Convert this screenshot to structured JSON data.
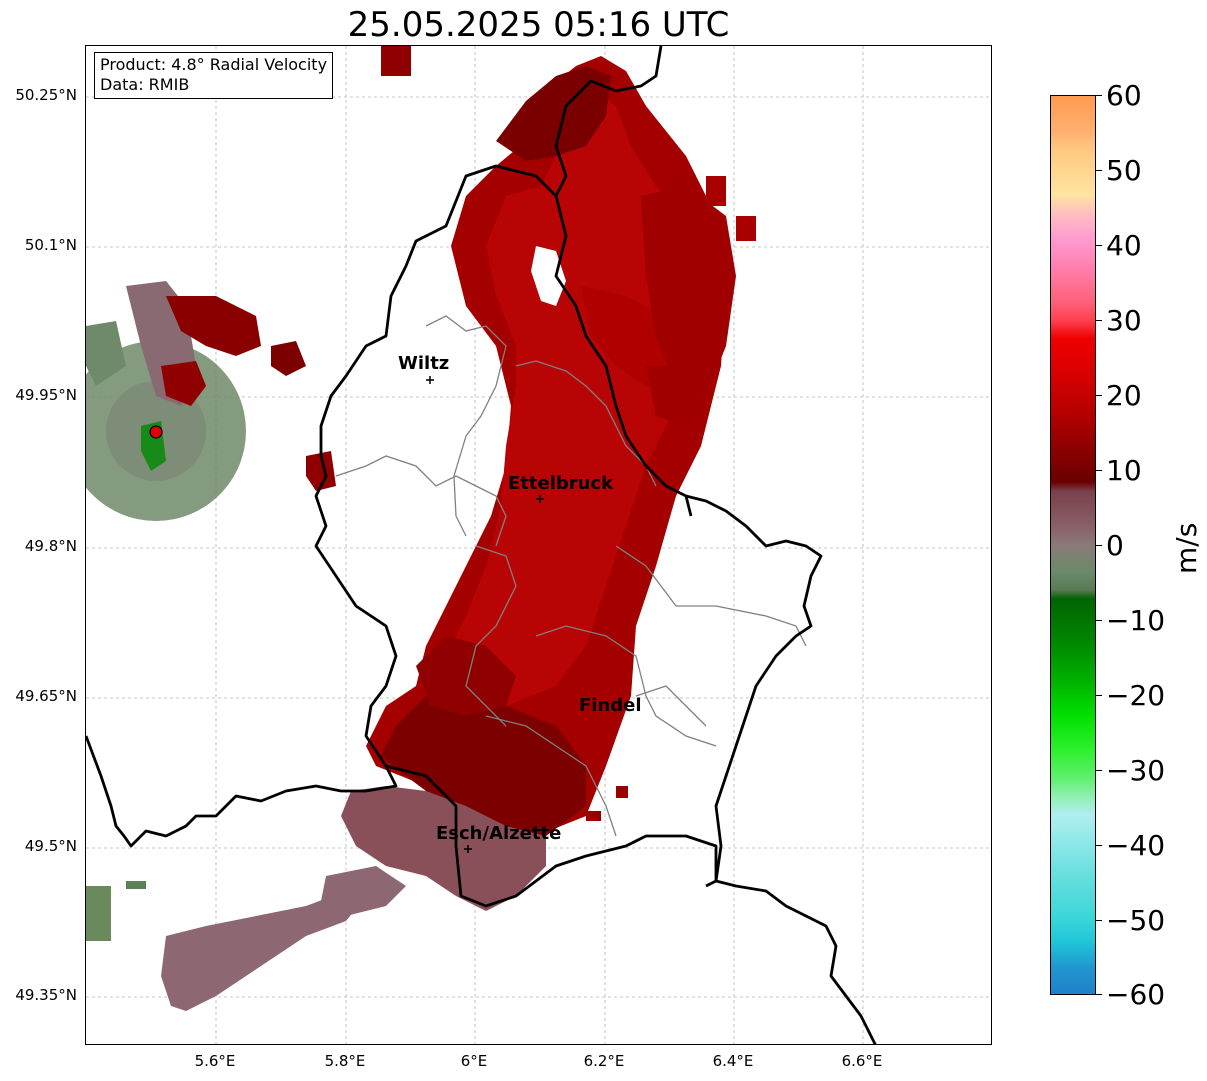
{
  "title": "25.05.2025 05:16 UTC",
  "info": {
    "product": "Product: 4.8° Radial Velocity",
    "data": "Data: RMIB"
  },
  "lat_labels": [
    "50.25°N",
    "50.1°N",
    "49.95°N",
    "49.8°N",
    "49.65°N",
    "49.5°N",
    "49.35°N"
  ],
  "lon_labels": [
    "5.6°E",
    "5.8°E",
    "6°E",
    "6.2°E",
    "6.4°E",
    "6.6°E"
  ],
  "cities": [
    {
      "name": "Wiltz"
    },
    {
      "name": "Ettelbruck"
    },
    {
      "name": "Findel"
    },
    {
      "name": "Esch/Alzette"
    }
  ],
  "colorbar": {
    "unit": "m/s",
    "ticks": [
      "60",
      "50",
      "40",
      "30",
      "20",
      "10",
      "0",
      "−10",
      "−20",
      "−30",
      "−40",
      "−50",
      "−60"
    ],
    "range": [
      -60,
      60
    ]
  },
  "colors": {
    "radar_site": "#e00000",
    "velocity_dark_red": "#7a0000",
    "velocity_red": "#b80000",
    "velocity_near_zero": "#8a5a62"
  }
}
